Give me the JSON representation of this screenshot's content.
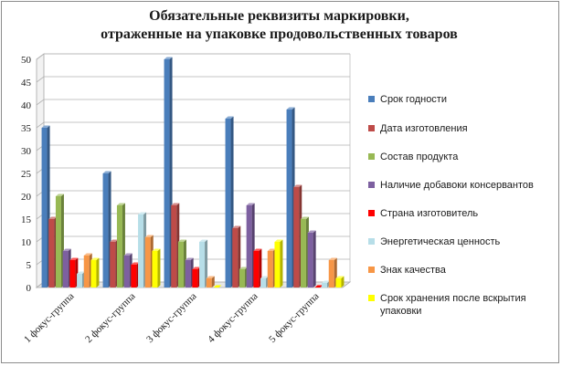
{
  "chart_data": {
    "type": "bar",
    "title_lines": [
      "Обязательные  реквизиты маркировки,",
      "отраженные на упаковке продовольственных товаров"
    ],
    "categories": [
      "1 фокус-группа",
      "2 фокус-группа",
      "3 фокус-группа",
      "4 фокус-группа",
      "5 фокус-группа"
    ],
    "ylim": [
      0,
      50
    ],
    "yticks": [
      "0",
      "5",
      "10",
      "15",
      "20",
      "25",
      "30",
      "35",
      "40",
      "45",
      "50"
    ],
    "grid": true,
    "style": "3d-clustered-column",
    "legend_position": "right",
    "series": [
      {
        "name": "Срок годности",
        "color": "#4a7ebb",
        "values": [
          35,
          25,
          50,
          37,
          39
        ]
      },
      {
        "name": "Дата изготовления",
        "color": "#be4b48",
        "values": [
          15,
          10,
          18,
          13,
          22
        ]
      },
      {
        "name": "Состав продукта",
        "color": "#98b954",
        "values": [
          20,
          18,
          10,
          4,
          15
        ]
      },
      {
        "name": "Наличие добавоки консервантов",
        "color": "#7d60a0",
        "values": [
          8,
          7,
          6,
          18,
          12
        ]
      },
      {
        "name": "Страна изготовитель",
        "color": "#ff0000",
        "values": [
          6,
          5,
          4,
          8,
          0
        ]
      },
      {
        "name": "Энергетическая ценность",
        "color": "#b7dee8",
        "values": [
          3,
          16,
          10,
          2,
          1
        ]
      },
      {
        "name": "Знак качества",
        "color": "#f79646",
        "values": [
          7,
          11,
          2,
          8,
          6
        ]
      },
      {
        "name": "Срок хранения после вскрытия упаковки",
        "color": "#ffff00",
        "values": [
          6,
          8,
          0,
          10,
          2
        ]
      }
    ]
  }
}
